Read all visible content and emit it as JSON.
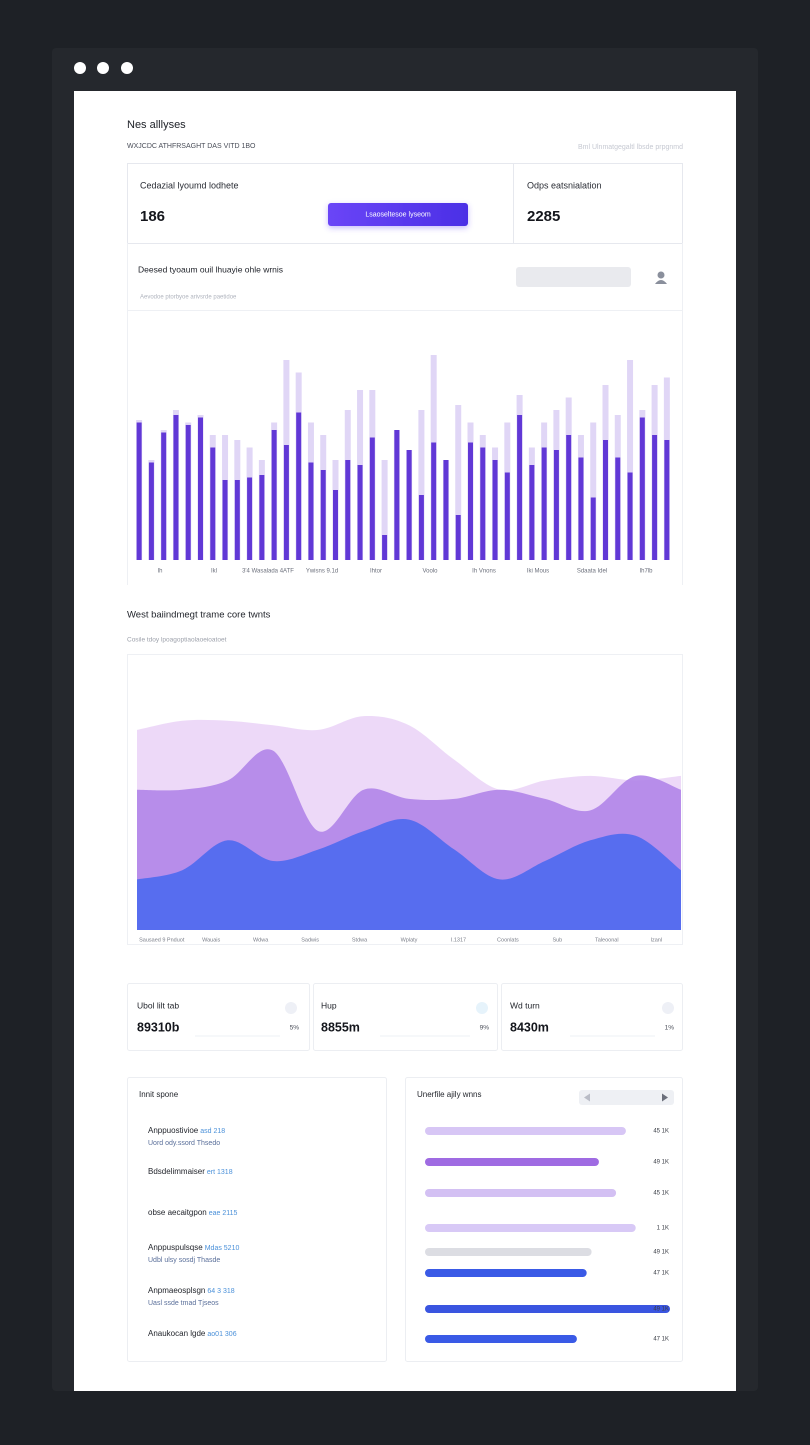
{
  "header": {
    "title": "Nes alllyses",
    "subtitle": "WXJCDC ATHFRSAGHT DAS VITD 1BO",
    "note": "Bml Ulnmatgegaltl lbsde prpgnmd"
  },
  "stats": [
    {
      "label": "Cedazial lyoumd lodhete",
      "value": 186
    },
    {
      "label": "Odps eatsnialation",
      "value": 2285
    }
  ],
  "button": "Lsaoseltesoe lyseom",
  "chart_data": [
    {
      "type": "bar",
      "title": "Deesed tyoaum ouil lhuayie ohle wrnis",
      "subtitle": "Aevodoe ptorbyoe arivsrde paetidoe",
      "axis_labels": [
        "Ih",
        "Ikl",
        "3'4 Wasalada 4ATF",
        "Ywisns 9.1d",
        "Ihtor",
        "Voolo",
        "Ih Vnons",
        "Iki Mous",
        "Sdaata Idel",
        "Ih7lb"
      ],
      "ylim": [
        0,
        100
      ],
      "series": [
        {
          "color": "#ddd2f5",
          "values": [
            56,
            40,
            52,
            60,
            55,
            58,
            50,
            50,
            48,
            45,
            40,
            55,
            80,
            75,
            55,
            50,
            40,
            60,
            68,
            68,
            40,
            52,
            44,
            60,
            82,
            40,
            62,
            55,
            50,
            45,
            55,
            66,
            45,
            55,
            60,
            65,
            50,
            55,
            70,
            58,
            80,
            60,
            70,
            73
          ]
        },
        {
          "color": "#5a2fd4",
          "values": [
            55,
            39,
            51,
            58,
            54,
            57,
            45,
            32,
            32,
            33,
            34,
            52,
            46,
            59,
            39,
            36,
            28,
            40,
            38,
            49,
            10,
            52,
            44,
            26,
            47,
            40,
            18,
            47,
            45,
            40,
            35,
            58,
            38,
            45,
            44,
            50,
            41,
            25,
            48,
            41,
            35,
            57,
            50,
            48
          ]
        }
      ]
    },
    {
      "type": "area",
      "title": "West baiindmegt trame core twnts",
      "subtitle": "Cosile tdoy lpoagoptiaolaoeioatoet",
      "axis_labels": [
        "Sausaed 9 Pnduot",
        "Wauais",
        "Wdwa",
        "Sadwis",
        "Stdwa",
        "Wplaty",
        "I.1317",
        "Coonlats",
        "Sub",
        "Taleoonal",
        "Izanl"
      ],
      "ylim": [
        0,
        100
      ],
      "series": [
        {
          "color": "#ead2f7",
          "values": [
            87,
            91,
            91,
            89,
            87,
            93,
            89,
            74,
            61,
            65,
            67,
            65,
            67
          ]
        },
        {
          "color": "#ad7fe8",
          "values": [
            61,
            61,
            65,
            78,
            43,
            61,
            57,
            57,
            61,
            57,
            52,
            67,
            61
          ]
        },
        {
          "color": "#4667f0",
          "values": [
            22,
            26,
            39,
            30,
            35,
            43,
            48,
            35,
            22,
            30,
            39,
            41,
            26
          ]
        }
      ]
    },
    {
      "type": "hbar",
      "title": "Unerfile ajily wnns",
      "xlim": [
        0,
        100
      ],
      "annotations": [
        "45 1K",
        "49 1K",
        "45 1K",
        "1 1K",
        "49 1K",
        "47 1K",
        "49 1K",
        "47 1K"
      ],
      "colors": [
        "#d7c6f5",
        "#9f6be2",
        "#d3c0f3",
        "#d8c9f6",
        "#dcdde3",
        "#3a5ae6",
        "#3a55e0",
        "#3a5ae6"
      ],
      "values": [
        82,
        71,
        78,
        86,
        68,
        66,
        100,
        62
      ]
    }
  ],
  "cards": [
    {
      "title": "Ubol lilt tab",
      "value": "89310b",
      "change": "5%"
    },
    {
      "title": "Hup",
      "value": "8855m",
      "change": "9%"
    },
    {
      "title": "Wd turn",
      "value": "8430m",
      "change": "1%"
    }
  ],
  "list": {
    "title": "Innit spone",
    "items": [
      {
        "title": "Anppuostivioe",
        "suffix": "asd 218",
        "sub": "Uord ody.ssord Thsedo"
      },
      {
        "title": "Bdsdelimmaiser",
        "suffix": "ert 1318"
      },
      {
        "title": "obse aecaitgpon",
        "suffix": "eae 2115"
      },
      {
        "title": "Anppuspulsqse",
        "suffix": "Mdas 5210",
        "sub": "Udbl ulsy sosdj Thasde"
      },
      {
        "title": "Anpmaeosplsgn",
        "suffix": "64 3 318",
        "sub": "Uasl ssde tmad Tjseos"
      },
      {
        "title": "Anaukocan lgde",
        "suffix": "ao01 306"
      }
    ]
  }
}
